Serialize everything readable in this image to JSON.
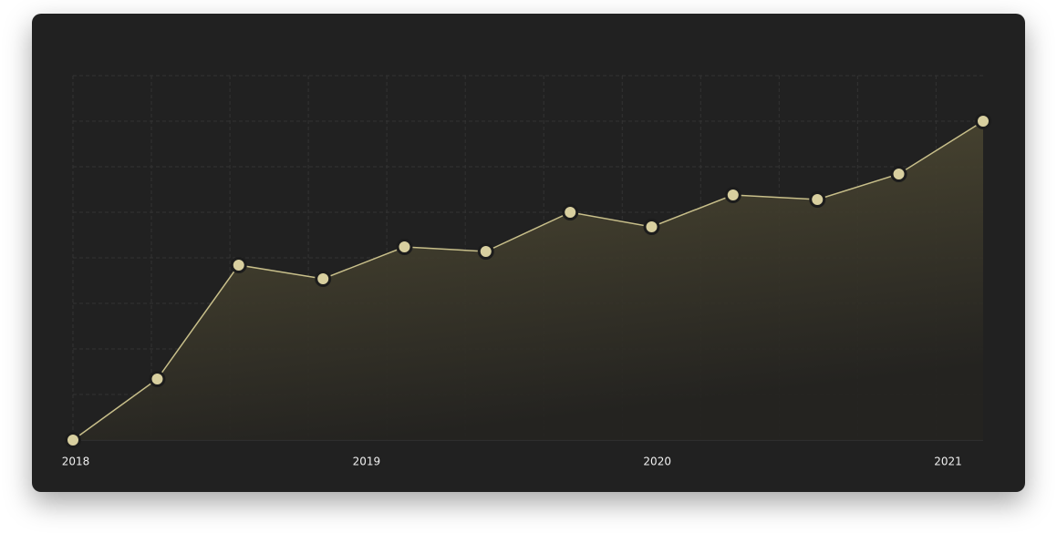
{
  "chart_data": {
    "type": "area",
    "x": [
      2018.0,
      2018.29,
      2018.57,
      2018.86,
      2019.14,
      2019.42,
      2019.71,
      2019.99,
      2020.27,
      2020.56,
      2020.84,
      2021.13
    ],
    "series": [
      {
        "color": "#c8bf8a",
        "values": [
          0,
          1.34,
          3.84,
          3.54,
          4.24,
          4.14,
          5.0,
          4.68,
          5.38,
          5.28,
          5.84,
          7.0
        ]
      }
    ],
    "xlim": [
      2018,
      2021.13
    ],
    "xticks": [
      2018,
      2019,
      2020,
      2021
    ],
    "ylim": [
      0,
      8
    ],
    "yticks": [
      0,
      1,
      2,
      3,
      4,
      5,
      6,
      7,
      8
    ],
    "grid": true
  }
}
